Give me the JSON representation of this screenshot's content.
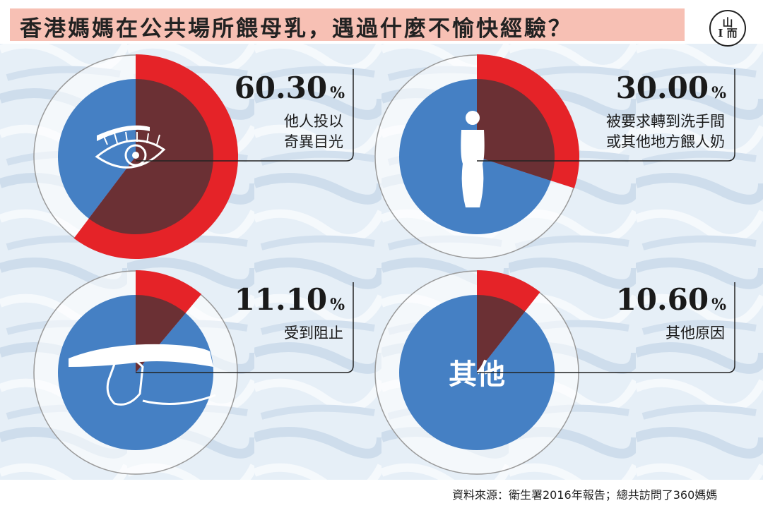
{
  "title": "香港媽媽在公共場所餵母乳，遇過什麼不愉快經驗？",
  "logo_text": [
    "山",
    "I 而"
  ],
  "source": "資料來源：衛生署2016年報告；總共訪問了360媽媽",
  "percent_symbol": "%",
  "colors": {
    "blue": "#4580c4",
    "red": "#e52328",
    "overlap": "#6b3034",
    "ring": "#9a9a9a"
  },
  "chart_data": [
    {
      "type": "pie",
      "value": 60.3,
      "value_label": "60.30",
      "label": [
        "他人投以",
        "奇異目光"
      ],
      "icon": "eye-icon"
    },
    {
      "type": "pie",
      "value": 30.0,
      "value_label": "30.00",
      "label": [
        "被要求轉到洗手間",
        "或其他地方餵人奶"
      ],
      "icon": "person-icon"
    },
    {
      "type": "pie",
      "value": 11.1,
      "value_label": "11.10",
      "label": [
        "受到阻止"
      ],
      "icon": "stop-hand-icon"
    },
    {
      "type": "pie",
      "value": 10.6,
      "value_label": "10.60",
      "label": [
        "其他原因"
      ],
      "icon": "other-text",
      "center_text": "其他"
    }
  ]
}
